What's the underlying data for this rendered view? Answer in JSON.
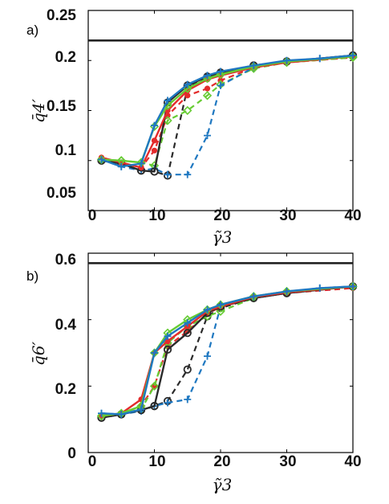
{
  "chart_data": [
    {
      "type": "line",
      "panel_label": "a)",
      "xlabel": "γ̃3",
      "ylabel": "q̄4′",
      "xlim": [
        0,
        40
      ],
      "ylim": [
        0.05,
        0.25
      ],
      "xticks": [
        "0",
        "10",
        "20",
        "30",
        "40"
      ],
      "yticks": [
        "0.05",
        "0.1",
        "0.15",
        "0.2",
        "0.25"
      ],
      "reference_line": 0.22,
      "grid": false,
      "series": [
        {
          "color": "#2a2a2a",
          "dash": "none",
          "marker": "circle",
          "x": [
            2,
            5,
            8,
            10,
            12,
            15,
            18,
            20,
            25,
            30,
            40
          ],
          "y": [
            0.1,
            0.097,
            0.09,
            0.089,
            0.158,
            0.175,
            0.184,
            0.188,
            0.195,
            0.199,
            0.205
          ]
        },
        {
          "color": "#2a2a2a",
          "dash": "dash",
          "marker": "circle",
          "x": [
            2,
            5,
            8,
            10,
            12,
            15,
            18,
            20,
            25,
            30,
            40
          ],
          "y": [
            0.1,
            0.097,
            0.09,
            0.089,
            0.085,
            0.173,
            0.183,
            0.187,
            0.195,
            0.199,
            0.205
          ]
        },
        {
          "color": "#e32b2b",
          "dash": "none",
          "marker": "dot",
          "x": [
            2,
            5,
            8,
            10,
            12,
            15,
            18,
            20,
            25,
            30,
            40
          ],
          "y": [
            0.103,
            0.098,
            0.093,
            0.12,
            0.15,
            0.17,
            0.181,
            0.185,
            0.193,
            0.198,
            0.204
          ]
        },
        {
          "color": "#e32b2b",
          "dash": "dash",
          "marker": "dot",
          "x": [
            2,
            5,
            8,
            10,
            12,
            15,
            18,
            20,
            25,
            30,
            40
          ],
          "y": [
            0.103,
            0.098,
            0.093,
            0.11,
            0.145,
            0.165,
            0.172,
            0.18,
            0.193,
            0.198,
            0.203
          ]
        },
        {
          "color": "#66cc33",
          "dash": "none",
          "marker": "diamond",
          "x": [
            2,
            5,
            8,
            10,
            12,
            15,
            18,
            20,
            25,
            30,
            40
          ],
          "y": [
            0.101,
            0.1,
            0.098,
            0.134,
            0.155,
            0.172,
            0.182,
            0.186,
            0.194,
            0.199,
            0.204
          ]
        },
        {
          "color": "#66cc33",
          "dash": "dash",
          "marker": "diamond",
          "x": [
            2,
            5,
            8,
            10,
            12,
            15,
            18,
            20,
            25,
            30,
            40
          ],
          "y": [
            0.101,
            0.1,
            0.098,
            0.095,
            0.14,
            0.15,
            0.165,
            0.176,
            0.192,
            0.198,
            0.203
          ]
        },
        {
          "color": "#1f78c1",
          "dash": "none",
          "marker": "plus",
          "x": [
            2,
            5,
            8,
            10,
            12,
            15,
            18,
            20,
            25,
            30,
            35,
            40
          ],
          "y": [
            0.101,
            0.094,
            0.097,
            0.135,
            0.16,
            0.176,
            0.185,
            0.189,
            0.195,
            0.2,
            0.202,
            0.205
          ]
        },
        {
          "color": "#1f78c1",
          "dash": "dash",
          "marker": "plus",
          "x": [
            2,
            5,
            8,
            10,
            12,
            15,
            18,
            20,
            25,
            30,
            35,
            40
          ],
          "y": [
            0.101,
            0.094,
            0.09,
            0.092,
            0.086,
            0.086,
            0.125,
            0.175,
            0.193,
            0.199,
            0.202,
            0.205
          ]
        }
      ]
    },
    {
      "type": "line",
      "panel_label": "b)",
      "xlabel": "γ̃3",
      "ylabel": "q̄6′",
      "xlim": [
        0,
        40
      ],
      "ylim": [
        0,
        0.6
      ],
      "xticks": [
        "0",
        "10",
        "20",
        "30",
        "40"
      ],
      "yticks": [
        "0",
        "0.2",
        "0.4",
        "0.6"
      ],
      "reference_line": 0.57,
      "grid": false,
      "series": [
        {
          "color": "#2a2a2a",
          "dash": "none",
          "marker": "circle",
          "x": [
            2,
            5,
            8,
            10,
            12,
            15,
            18,
            20,
            25,
            30,
            40
          ],
          "y": [
            0.105,
            0.115,
            0.128,
            0.14,
            0.31,
            0.36,
            0.42,
            0.44,
            0.465,
            0.48,
            0.5
          ]
        },
        {
          "color": "#2a2a2a",
          "dash": "dash",
          "marker": "circle",
          "x": [
            2,
            5,
            8,
            10,
            12,
            15,
            18,
            20,
            25,
            30,
            40
          ],
          "y": [
            0.105,
            0.115,
            0.128,
            0.14,
            0.155,
            0.25,
            0.41,
            0.435,
            0.465,
            0.48,
            0.5
          ]
        },
        {
          "color": "#e32b2b",
          "dash": "none",
          "marker": "dot",
          "x": [
            2,
            5,
            8,
            10,
            12,
            15,
            18,
            20,
            25,
            30,
            40
          ],
          "y": [
            0.11,
            0.118,
            0.16,
            0.3,
            0.335,
            0.38,
            0.425,
            0.44,
            0.468,
            0.482,
            0.5
          ]
        },
        {
          "color": "#e32b2b",
          "dash": "dash",
          "marker": "dot",
          "x": [
            2,
            5,
            8,
            10,
            12,
            15,
            18,
            20,
            25,
            30,
            40
          ],
          "y": [
            0.11,
            0.118,
            0.14,
            0.2,
            0.32,
            0.365,
            0.418,
            0.438,
            0.465,
            0.48,
            0.495
          ]
        },
        {
          "color": "#66cc33",
          "dash": "none",
          "marker": "diamond",
          "x": [
            2,
            5,
            8,
            10,
            12,
            15,
            18,
            20,
            25,
            30,
            40
          ],
          "y": [
            0.11,
            0.118,
            0.14,
            0.3,
            0.36,
            0.4,
            0.43,
            0.445,
            0.47,
            0.485,
            0.5
          ]
        },
        {
          "color": "#66cc33",
          "dash": "dash",
          "marker": "diamond",
          "x": [
            2,
            5,
            8,
            10,
            12,
            15,
            18,
            20,
            25,
            30,
            40
          ],
          "y": [
            0.11,
            0.118,
            0.13,
            0.2,
            0.33,
            0.38,
            0.41,
            0.425,
            0.465,
            0.485,
            0.5
          ]
        },
        {
          "color": "#1f78c1",
          "dash": "none",
          "marker": "plus",
          "x": [
            2,
            5,
            8,
            10,
            12,
            15,
            18,
            20,
            25,
            30,
            35,
            40
          ],
          "y": [
            0.118,
            0.115,
            0.13,
            0.3,
            0.35,
            0.39,
            0.43,
            0.445,
            0.47,
            0.485,
            0.495,
            0.5
          ]
        },
        {
          "color": "#1f78c1",
          "dash": "dash",
          "marker": "plus",
          "x": [
            2,
            5,
            8,
            10,
            12,
            15,
            18,
            20,
            25,
            30,
            35,
            40
          ],
          "y": [
            0.118,
            0.115,
            0.125,
            0.14,
            0.15,
            0.16,
            0.29,
            0.44,
            0.468,
            0.483,
            0.495,
            0.5
          ]
        }
      ]
    }
  ]
}
